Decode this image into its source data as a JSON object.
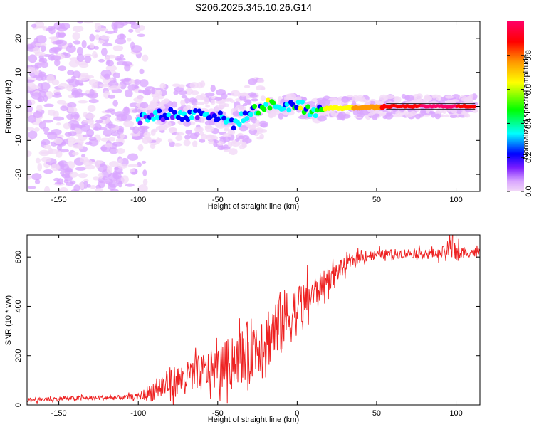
{
  "title": "S206.2025.345.10.26.G14",
  "chart_data": [
    {
      "type": "heatmap",
      "name": "spectrogram",
      "xlabel": "Height of straight line (km)",
      "ylabel": "Frequency (Hz)",
      "xlim": [
        -170,
        115
      ],
      "ylim": [
        -25,
        25
      ],
      "xticks": [
        -150,
        -100,
        -50,
        0,
        50,
        100
      ],
      "yticks": [
        -20,
        -10,
        0,
        10,
        20
      ],
      "grid": false,
      "colorbar": {
        "label": "Normalized spectral amplitude",
        "range": [
          0,
          1
        ],
        "ticks": [
          0.0,
          0.2,
          0.4,
          0.6,
          0.8
        ],
        "colormap": [
          "#f2d9f7",
          "#d9a6ff",
          "#7a1cff",
          "#0000ff",
          "#00ffff",
          "#00ff00",
          "#ffff00",
          "#ff9900",
          "#ff0000",
          "#ff0066"
        ]
      },
      "ridge": [
        {
          "x": -100,
          "y": -3.5,
          "amp": 0.35
        },
        {
          "x": -90,
          "y": -3.0,
          "amp": 0.4
        },
        {
          "x": -80,
          "y": -2.0,
          "amp": 0.38
        },
        {
          "x": -70,
          "y": -3.0,
          "amp": 0.42
        },
        {
          "x": -60,
          "y": -1.5,
          "amp": 0.4
        },
        {
          "x": -50,
          "y": -3.0,
          "amp": 0.35
        },
        {
          "x": -40,
          "y": -5.0,
          "amp": 0.38
        },
        {
          "x": -30,
          "y": -2.0,
          "amp": 0.45
        },
        {
          "x": -20,
          "y": 0.5,
          "amp": 0.55
        },
        {
          "x": -10,
          "y": 0.0,
          "amp": 0.5
        },
        {
          "x": 0,
          "y": 0.5,
          "amp": 0.55
        },
        {
          "x": 10,
          "y": -1.5,
          "amp": 0.5
        },
        {
          "x": 20,
          "y": -0.5,
          "amp": 0.65
        },
        {
          "x": 30,
          "y": -0.5,
          "amp": 0.7
        },
        {
          "x": 40,
          "y": -0.3,
          "amp": 0.75
        },
        {
          "x": 50,
          "y": -0.3,
          "amp": 0.8
        },
        {
          "x": 60,
          "y": 0.0,
          "amp": 0.9
        },
        {
          "x": 80,
          "y": 0.0,
          "amp": 0.95
        },
        {
          "x": 100,
          "y": 0.0,
          "amp": 0.95
        },
        {
          "x": 112,
          "y": 0.0,
          "amp": 0.9
        }
      ]
    },
    {
      "type": "line",
      "name": "snr",
      "xlabel": "Height of straight line (km)",
      "ylabel": "SNR (10 * v/v)",
      "xlim": [
        -170,
        115
      ],
      "ylim": [
        0,
        690
      ],
      "xticks": [
        -150,
        -100,
        -50,
        0,
        50,
        100
      ],
      "yticks": [
        0,
        200,
        400,
        600
      ],
      "grid": false,
      "series": [
        {
          "name": "SNR",
          "color": "#ee2222",
          "x": [
            -170,
            -150,
            -130,
            -110,
            -100,
            -95,
            -90,
            -85,
            -80,
            -75,
            -70,
            -65,
            -60,
            -55,
            -50,
            -45,
            -40,
            -35,
            -30,
            -25,
            -20,
            -15,
            -10,
            -5,
            0,
            5,
            10,
            15,
            20,
            25,
            30,
            35,
            40,
            45,
            50,
            60,
            70,
            80,
            90,
            98,
            100,
            105,
            110,
            115
          ],
          "y": [
            20,
            25,
            28,
            30,
            35,
            45,
            60,
            75,
            90,
            100,
            110,
            120,
            130,
            140,
            150,
            165,
            180,
            200,
            230,
            250,
            270,
            300,
            330,
            360,
            390,
            420,
            450,
            480,
            510,
            540,
            565,
            585,
            600,
            605,
            610,
            612,
            615,
            615,
            612,
            640,
            610,
            618,
            620,
            615
          ],
          "spread": [
            10,
            12,
            12,
            12,
            15,
            35,
            60,
            70,
            80,
            80,
            80,
            90,
            100,
            100,
            110,
            120,
            130,
            140,
            150,
            160,
            160,
            170,
            170,
            150,
            130,
            110,
            90,
            70,
            60,
            50,
            40,
            30,
            30,
            25,
            25,
            25,
            25,
            25,
            25,
            60,
            60,
            25,
            25,
            25
          ]
        }
      ]
    }
  ]
}
